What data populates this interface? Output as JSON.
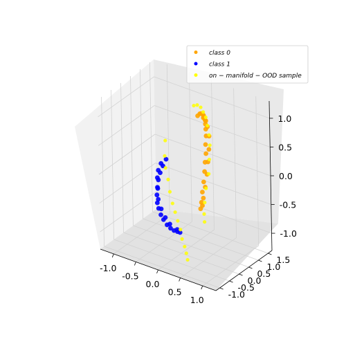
{
  "chart_data": {
    "type": "scatter",
    "projection": "3d",
    "grid": true,
    "legend_position": "top-right",
    "axes": {
      "x": {
        "range": [
          -1.3,
          1.3
        ],
        "ticks": [
          "-1.0",
          "-0.5",
          "0.0",
          "0.5",
          "1.0"
        ],
        "values": [
          -1.0,
          -0.5,
          0.0,
          0.5,
          1.0
        ]
      },
      "y": {
        "range": [
          -1.2,
          1.7
        ],
        "ticks": [
          "-1.0",
          "-0.5",
          "0.0",
          "0.5",
          "1.0",
          "1.5"
        ],
        "values": [
          -1.0,
          -0.5,
          0.0,
          0.5,
          1.0,
          1.5
        ]
      },
      "z": {
        "range": [
          -1.3,
          1.3
        ],
        "ticks": [
          "-1.0",
          "-0.5",
          "0.0",
          "0.5",
          "1.0"
        ],
        "values": [
          -1.0,
          -0.5,
          0.0,
          0.5,
          1.0
        ]
      }
    },
    "series": [
      {
        "name": "class 0",
        "color": "#ffa500",
        "marker": "circle",
        "shape": "upper half-moon arc",
        "points": [
          [
            0.05,
            0.85,
            0.9
          ],
          [
            0.1,
            0.85,
            0.95
          ],
          [
            0.15,
            0.8,
            0.98
          ],
          [
            0.2,
            0.75,
            1.0
          ],
          [
            0.25,
            0.7,
            1.0
          ],
          [
            0.3,
            0.62,
            1.0
          ],
          [
            0.35,
            0.55,
            0.98
          ],
          [
            0.4,
            0.45,
            0.95
          ],
          [
            0.45,
            0.35,
            0.9
          ],
          [
            0.5,
            0.25,
            0.82
          ],
          [
            0.55,
            0.1,
            0.72
          ],
          [
            0.6,
            0.0,
            0.6
          ],
          [
            0.62,
            -0.1,
            0.48
          ],
          [
            0.65,
            -0.2,
            0.35
          ],
          [
            0.67,
            -0.3,
            0.2
          ],
          [
            0.68,
            -0.4,
            0.05
          ],
          [
            0.7,
            -0.5,
            -0.1
          ],
          [
            0.7,
            -0.55,
            -0.2
          ],
          [
            0.2,
            0.8,
            0.92
          ],
          [
            0.3,
            0.7,
            0.92
          ],
          [
            0.4,
            0.55,
            0.88
          ],
          [
            0.5,
            0.4,
            0.78
          ],
          [
            0.58,
            0.2,
            0.62
          ],
          [
            0.62,
            0.05,
            0.45
          ],
          [
            0.66,
            -0.1,
            0.28
          ],
          [
            0.68,
            -0.25,
            0.1
          ],
          [
            0.7,
            -0.4,
            -0.05
          ],
          [
            0.72,
            -0.5,
            -0.15
          ]
        ]
      },
      {
        "name": "class 1",
        "color": "#0000ff",
        "marker": "circle",
        "shape": "lower half-moon arc",
        "points": [
          [
            -0.55,
            0.55,
            0.05
          ],
          [
            -0.58,
            0.45,
            -0.05
          ],
          [
            -0.6,
            0.35,
            -0.15
          ],
          [
            -0.6,
            0.25,
            -0.25
          ],
          [
            -0.58,
            0.15,
            -0.35
          ],
          [
            -0.55,
            0.05,
            -0.45
          ],
          [
            -0.5,
            -0.05,
            -0.55
          ],
          [
            -0.45,
            -0.1,
            -0.62
          ],
          [
            -0.38,
            -0.15,
            -0.7
          ],
          [
            -0.3,
            -0.2,
            -0.75
          ],
          [
            -0.2,
            -0.25,
            -0.8
          ],
          [
            -0.1,
            -0.3,
            -0.82
          ],
          [
            0.0,
            -0.35,
            -0.82
          ],
          [
            0.1,
            -0.4,
            -0.8
          ],
          [
            0.18,
            -0.45,
            -0.78
          ],
          [
            -0.6,
            0.4,
            0.0
          ],
          [
            -0.62,
            0.3,
            -0.1
          ],
          [
            -0.6,
            0.2,
            -0.2
          ],
          [
            -0.55,
            0.1,
            -0.35
          ],
          [
            -0.5,
            0.0,
            -0.5
          ],
          [
            -0.4,
            -0.08,
            -0.62
          ],
          [
            -0.28,
            -0.15,
            -0.72
          ],
          [
            -0.15,
            -0.22,
            -0.78
          ],
          [
            0.05,
            -0.3,
            -0.8
          ]
        ]
      },
      {
        "name": "on-manifold-OOD sample",
        "color": "#ffff00",
        "marker": "circle",
        "points": [
          [
            -0.65,
            0.75,
            0.3
          ],
          [
            -0.58,
            0.55,
            0.1
          ],
          [
            -0.5,
            0.4,
            -0.05
          ],
          [
            -0.4,
            0.3,
            -0.2
          ],
          [
            -0.3,
            0.15,
            -0.35
          ],
          [
            -0.2,
            0.05,
            -0.5
          ],
          [
            -0.1,
            -0.05,
            -0.6
          ],
          [
            0.0,
            -0.15,
            -0.7
          ],
          [
            0.1,
            -0.25,
            -0.8
          ],
          [
            0.2,
            -0.4,
            -0.9
          ],
          [
            0.3,
            -0.5,
            -0.98
          ],
          [
            0.38,
            -0.6,
            -1.05
          ],
          [
            0.45,
            -0.7,
            -1.12
          ],
          [
            -0.1,
            1.0,
            1.0
          ],
          [
            0.0,
            0.95,
            1.05
          ],
          [
            0.1,
            0.9,
            1.05
          ],
          [
            0.2,
            0.8,
            1.02
          ],
          [
            0.3,
            0.7,
            0.98
          ],
          [
            0.4,
            0.55,
            0.9
          ],
          [
            0.5,
            0.4,
            0.8
          ],
          [
            0.58,
            0.25,
            0.68
          ],
          [
            0.65,
            0.05,
            0.5
          ],
          [
            0.7,
            -0.1,
            0.3
          ],
          [
            0.72,
            -0.3,
            0.1
          ],
          [
            0.75,
            -0.45,
            -0.1
          ],
          [
            0.8,
            -0.6,
            -0.25
          ],
          [
            0.85,
            -0.7,
            -0.35
          ]
        ]
      }
    ],
    "legend": [
      "class 0",
      "class 1",
      "on − manifold − OOD sample"
    ]
  }
}
